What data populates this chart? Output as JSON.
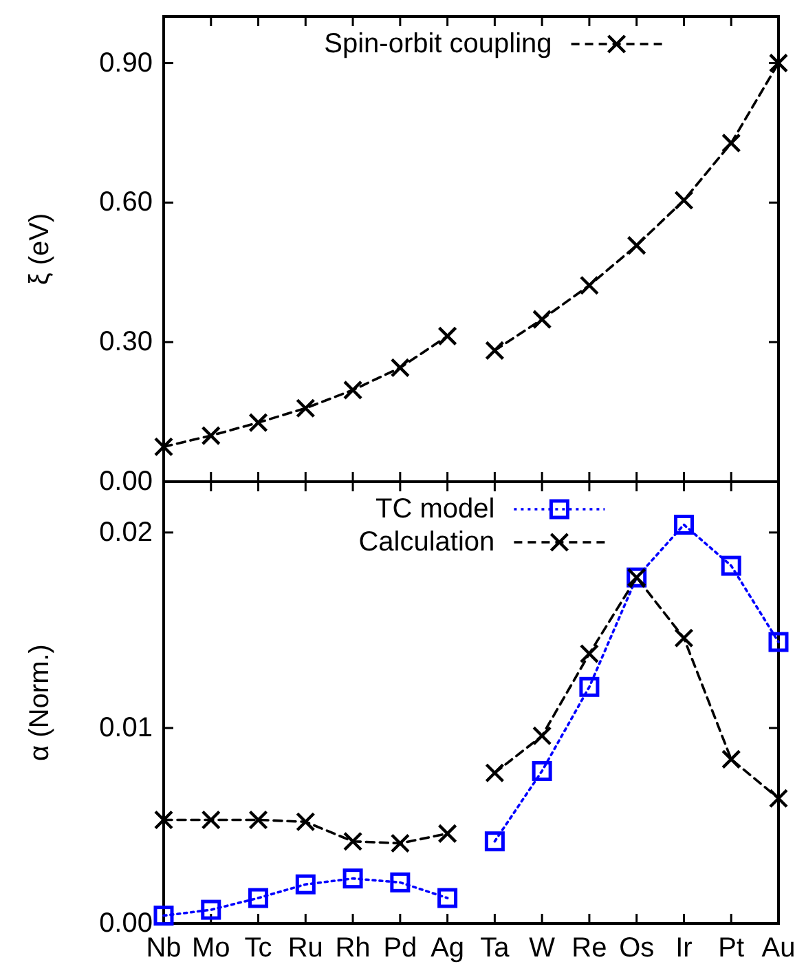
{
  "chart_data": [
    {
      "type": "line",
      "ylabel": "ξ (eV)",
      "categories": [
        null,
        null,
        null,
        null,
        null,
        null,
        null,
        null,
        null,
        null,
        null,
        null,
        null,
        null
      ],
      "ylim": [
        0,
        1.0
      ],
      "yticks": [
        {
          "value": 0,
          "label": "0.00"
        },
        {
          "value": 0.3,
          "label": "0.30"
        },
        {
          "value": 0.6,
          "label": "0.60"
        },
        {
          "value": 0.9,
          "label": "0.90"
        }
      ],
      "tick_labels": "y",
      "legend": "top",
      "marker": "cross",
      "line_style": "dashed",
      "series": [
        {
          "name": "Spin-orbit coupling",
          "color": "#000000",
          "values": [
            0.075,
            0.099,
            0.127,
            0.158,
            0.197,
            0.245,
            0.313,
            null,
            null,
            null,
            null,
            null,
            null,
            null
          ]
        },
        {
          "color": "#000000",
          "values": [
            null,
            null,
            null,
            null,
            null,
            null,
            null,
            0.282,
            0.349,
            0.422,
            0.508,
            0.605,
            0.728,
            0.9
          ]
        }
      ]
    },
    {
      "type": "line",
      "ylabel": "α (Norm.)",
      "categories": [
        "Nb",
        "Mo",
        "Tc",
        "Ru",
        "Rh",
        "Pd",
        "Ag",
        "Ta",
        "W",
        "Re",
        "Os",
        "Ir",
        "Pt",
        "Au"
      ],
      "ylim": [
        0,
        0.0226
      ],
      "yticks": [
        {
          "value": 0,
          "label": "0.00"
        },
        {
          "value": 0.01,
          "label": "0.01"
        },
        {
          "value": 0.02,
          "label": "0.02"
        }
      ],
      "legend": "top",
      "series": [
        {
          "name": "TC model",
          "color": "#0000ff",
          "marker": "square",
          "line_style": "dotted",
          "values": [
            0.0004,
            0.0007,
            0.0013,
            0.002,
            0.0023,
            0.0021,
            0.0013,
            null,
            null,
            null,
            null,
            null,
            null,
            null
          ]
        },
        {
          "name": "Calculation",
          "color": "#000000",
          "marker": "cross",
          "line_style": "dashed",
          "values": [
            0.0053,
            0.0053,
            0.0053,
            0.0052,
            0.0042,
            0.0041,
            0.0046,
            null,
            null,
            null,
            null,
            null,
            null,
            null
          ]
        },
        {
          "color": "#0000ff",
          "marker": "square",
          "line_style": "dotted",
          "values": [
            null,
            null,
            null,
            null,
            null,
            null,
            null,
            0.0042,
            0.0078,
            0.0121,
            0.0177,
            0.0204,
            0.0183,
            0.0144
          ]
        },
        {
          "color": "#000000",
          "marker": "cross",
          "line_style": "dashed",
          "values": [
            null,
            null,
            null,
            null,
            null,
            null,
            null,
            0.0077,
            0.0096,
            0.0138,
            0.0177,
            0.0146,
            0.0084,
            0.0064
          ]
        }
      ]
    }
  ]
}
